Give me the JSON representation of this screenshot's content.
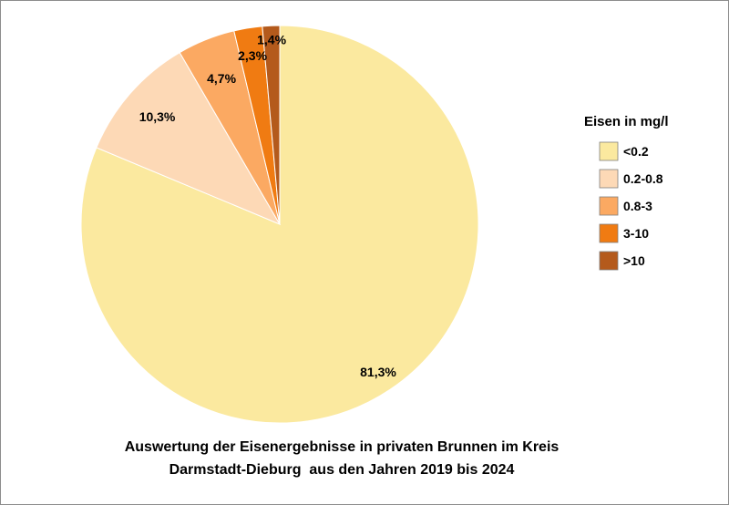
{
  "chart_data": {
    "type": "pie",
    "categories": [
      "<0.2",
      "0.2-0.8",
      "0.8-3",
      "3-10",
      ">10"
    ],
    "values": [
      81.3,
      10.3,
      4.7,
      2.3,
      1.4
    ],
    "value_labels": [
      "81,3%",
      "10,3%",
      "4,7%",
      "2,3%",
      "1,4%"
    ],
    "colors": [
      "#FBE99F",
      "#FDD9B6",
      "#FBA962",
      "#F07B12",
      "#B45A1C"
    ],
    "legend_title": "Eisen in mg/l",
    "legend_position": "right",
    "title_lines": [
      "Auswertung der Eisenergebnisse in privaten Brunnen im Kreis",
      "Darmstadt-Dieburg  aus den Jahren 2019 bis 2024"
    ]
  }
}
